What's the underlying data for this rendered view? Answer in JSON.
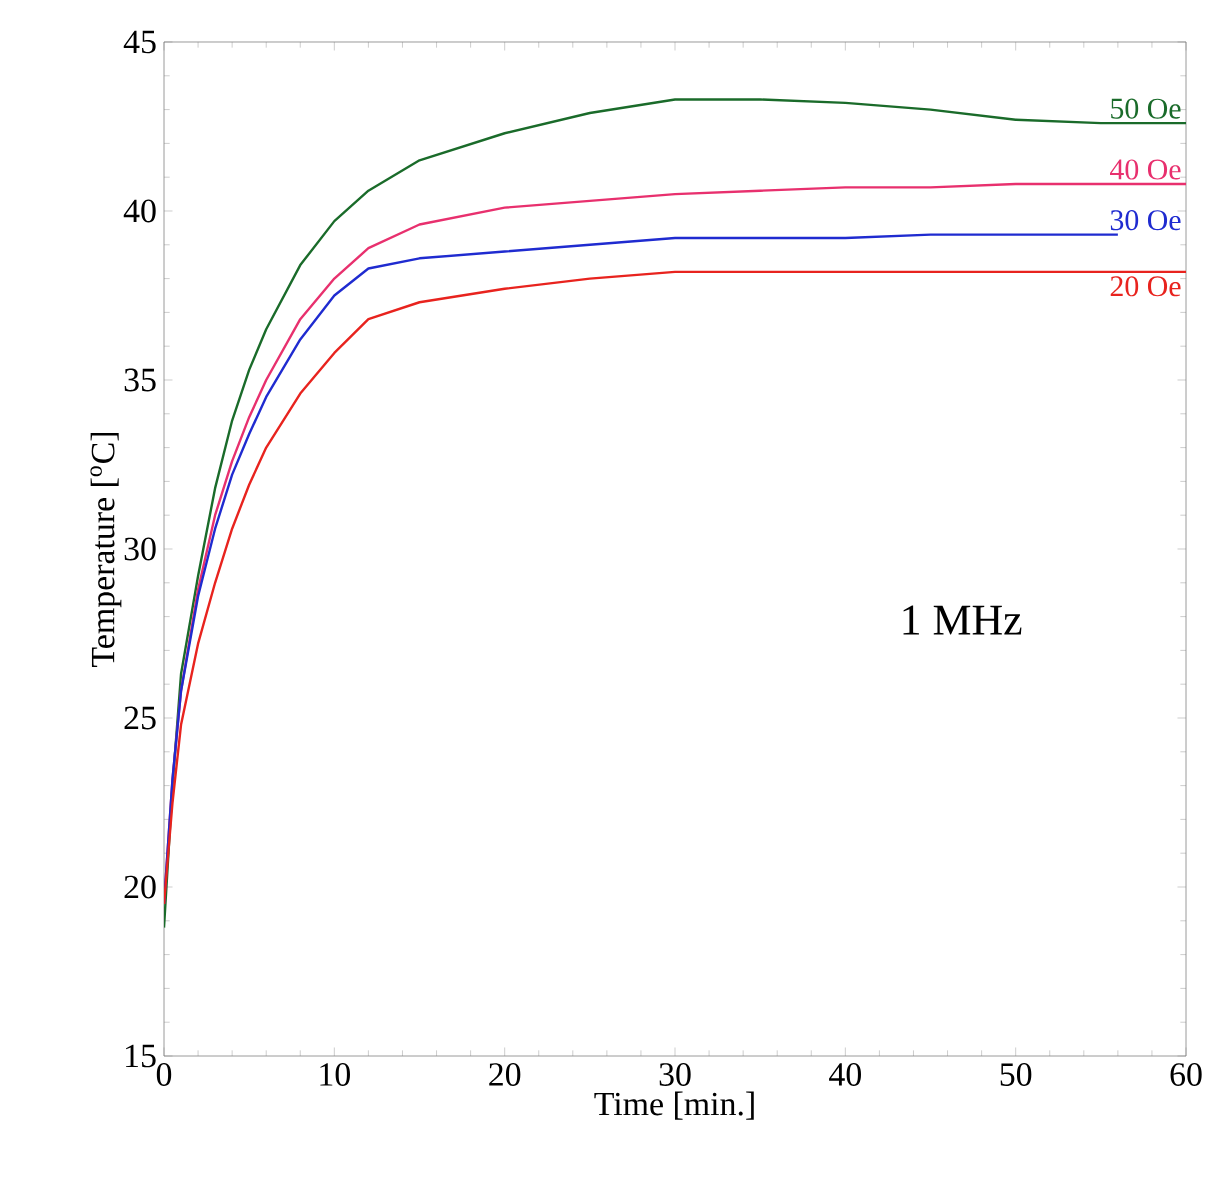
{
  "chart_data": {
    "type": "line",
    "xlabel": "Time [min.]",
    "ylabel": "Temperature [$^{o}$C]",
    "annotations": [
      "1 MHz"
    ],
    "xlim": [
      0,
      60
    ],
    "ylim": [
      15,
      45
    ],
    "xticks": [
      0,
      10,
      20,
      30,
      40,
      50,
      60
    ],
    "yticks": [
      15,
      20,
      25,
      30,
      35,
      40,
      45
    ],
    "grid": false,
    "legend": false,
    "marker": "none",
    "line_style": "solid",
    "series": [
      {
        "name": "50 Oe",
        "color": "#1a6b2a",
        "x": [
          0,
          0.5,
          1,
          2,
          3,
          4,
          5,
          6,
          8,
          10,
          12,
          15,
          20,
          25,
          30,
          35,
          40,
          45,
          50,
          55,
          60
        ],
        "values": [
          18.8,
          23,
          26.3,
          29.2,
          31.8,
          33.8,
          35.3,
          36.5,
          38.4,
          39.7,
          40.6,
          41.5,
          42.3,
          42.9,
          43.3,
          43.3,
          43.2,
          43.0,
          42.7,
          42.6,
          42.6
        ]
      },
      {
        "name": "40 Oe",
        "color": "#e8306e",
        "x": [
          0,
          0.5,
          1,
          2,
          3,
          4,
          5,
          6,
          8,
          10,
          12,
          15,
          20,
          25,
          30,
          35,
          40,
          45,
          50,
          55,
          60
        ],
        "values": [
          19.5,
          23.2,
          25.8,
          28.8,
          31,
          32.6,
          33.9,
          35,
          36.8,
          38,
          38.9,
          39.6,
          40.1,
          40.3,
          40.5,
          40.6,
          40.7,
          40.7,
          40.8,
          40.8,
          40.8
        ]
      },
      {
        "name": "30 Oe",
        "color": "#1f2bd0",
        "x": [
          0,
          0.5,
          1,
          2,
          3,
          4,
          5,
          6,
          8,
          10,
          12,
          15,
          20,
          25,
          30,
          35,
          40,
          45,
          50,
          56
        ],
        "values": [
          19.5,
          23.2,
          25.8,
          28.6,
          30.6,
          32.2,
          33.4,
          34.5,
          36.2,
          37.5,
          38.3,
          38.6,
          38.8,
          39.0,
          39.2,
          39.2,
          39.2,
          39.3,
          39.3,
          39.3
        ]
      },
      {
        "name": "20 Oe",
        "color": "#e8231e",
        "x": [
          0,
          0.5,
          1,
          2,
          3,
          4,
          5,
          6,
          8,
          10,
          12,
          15,
          20,
          25,
          30,
          35,
          40,
          45,
          50,
          55,
          60
        ],
        "values": [
          19.5,
          22.5,
          24.8,
          27.2,
          29,
          30.6,
          31.9,
          33,
          34.6,
          35.8,
          36.8,
          37.3,
          37.7,
          38.0,
          38.2,
          38.2,
          38.2,
          38.2,
          38.2,
          38.2,
          38.2
        ]
      }
    ]
  }
}
